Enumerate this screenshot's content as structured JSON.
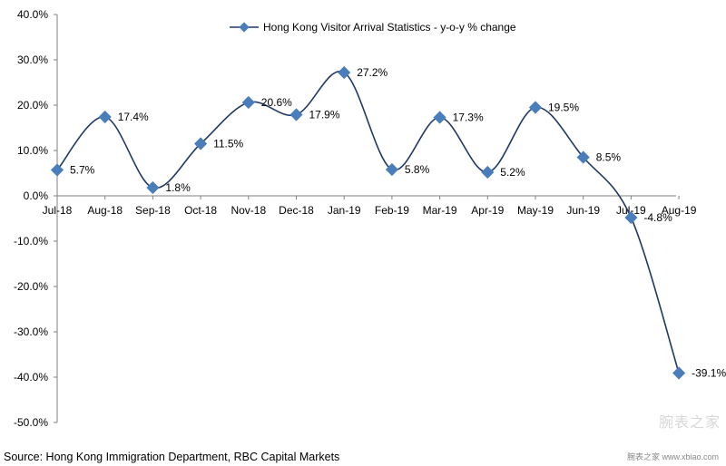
{
  "chart_data": {
    "type": "line",
    "title": "",
    "xlabel": "",
    "ylabel": "",
    "categories": [
      "Jul-18",
      "Aug-18",
      "Sep-18",
      "Oct-18",
      "Nov-18",
      "Dec-18",
      "Jan-19",
      "Feb-19",
      "Mar-19",
      "Apr-19",
      "May-19",
      "Jun-19",
      "Jul-19",
      "Aug-19"
    ],
    "series": [
      {
        "name": "Hong Kong Visitor Arrival Statistics - y-o-y % change",
        "values": [
          5.7,
          17.4,
          1.8,
          11.5,
          20.6,
          17.9,
          27.2,
          5.8,
          17.3,
          5.2,
          19.5,
          8.5,
          -4.8,
          -39.1
        ],
        "data_labels": [
          "5.7%",
          "17.4%",
          "1.8%",
          "11.5%",
          "20.6%",
          "17.9%",
          "27.2%",
          "5.8%",
          "17.3%",
          "5.2%",
          "19.5%",
          "8.5%",
          "-4.8%",
          "-39.1%"
        ]
      }
    ],
    "ylim": [
      -50,
      40
    ],
    "yticks": [
      40,
      30,
      20,
      10,
      0,
      -10,
      -20,
      -30,
      -40,
      -50
    ],
    "ytick_labels": [
      "40.0%",
      "30.0%",
      "20.0%",
      "10.0%",
      "0.0%",
      "-10.0%",
      "-20.0%",
      "-30.0%",
      "-40.0%",
      "-50.0%"
    ],
    "grid": false,
    "legend_position": "top-center",
    "line_color": "#1f3864",
    "marker_color": "#4a7ebb"
  },
  "footer": {
    "source": "Source: Hong Kong Immigration Department, RBC Capital Markets",
    "watermark": "腕表之家 www.xbiao.com",
    "watermark_big": "腕表之家"
  }
}
